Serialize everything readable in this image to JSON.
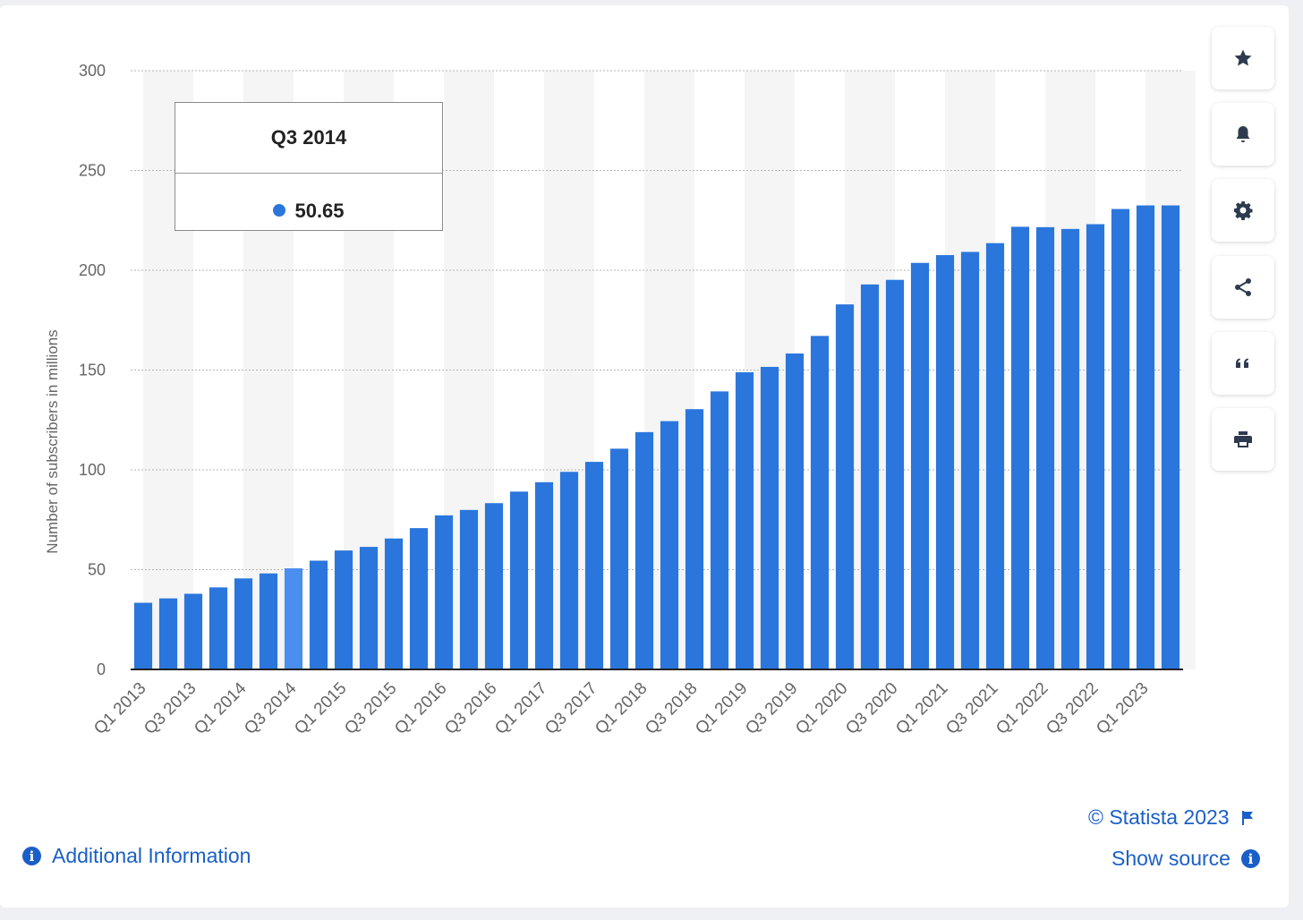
{
  "chart_data": {
    "type": "bar",
    "ylabel": "Number of subscribers in millions",
    "ylim": [
      0,
      300
    ],
    "yticks": [
      0,
      50,
      100,
      150,
      200,
      250,
      300
    ],
    "grid": true,
    "bar_color": "#2a76dd",
    "highlight_color": "#4a8ef0",
    "categories": [
      "Q1 2013",
      "Q2 2013",
      "Q3 2013",
      "Q4 2013",
      "Q1 2014",
      "Q2 2014",
      "Q3 2014",
      "Q4 2014",
      "Q1 2015",
      "Q2 2015",
      "Q3 2015",
      "Q4 2015",
      "Q1 2016",
      "Q2 2016",
      "Q3 2016",
      "Q4 2016",
      "Q1 2017",
      "Q2 2017",
      "Q3 2017",
      "Q4 2017",
      "Q1 2018",
      "Q2 2018",
      "Q3 2018",
      "Q4 2018",
      "Q1 2019",
      "Q2 2019",
      "Q3 2019",
      "Q4 2019",
      "Q1 2020",
      "Q2 2020",
      "Q3 2020",
      "Q4 2020",
      "Q1 2021",
      "Q2 2021",
      "Q3 2021",
      "Q4 2021",
      "Q1 2022",
      "Q2 2022",
      "Q3 2022",
      "Q4 2022",
      "Q1 2023",
      "Q2 2023"
    ],
    "xtick_labels": [
      "Q1 2013",
      "Q3 2013",
      "Q1 2014",
      "Q3 2014",
      "Q1 2015",
      "Q3 2015",
      "Q1 2016",
      "Q3 2016",
      "Q1 2017",
      "Q3 2017",
      "Q1 2018",
      "Q3 2018",
      "Q1 2019",
      "Q3 2019",
      "Q1 2020",
      "Q3 2020",
      "Q1 2021",
      "Q3 2021",
      "Q1 2022",
      "Q3 2022",
      "Q1 2023"
    ],
    "values": [
      33.4,
      35.6,
      37.9,
      41.1,
      45.6,
      48.1,
      50.65,
      54.5,
      59.6,
      61.4,
      65.6,
      70.8,
      77.2,
      79.9,
      83.3,
      89.1,
      93.8,
      99.0,
      104.0,
      110.6,
      118.9,
      124.4,
      130.4,
      139.3,
      148.9,
      151.6,
      158.3,
      167.1,
      182.9,
      192.9,
      195.2,
      203.7,
      207.6,
      209.2,
      213.6,
      221.8,
      221.6,
      220.7,
      223.1,
      230.7,
      232.5,
      232.5
    ],
    "highlight_index": 6
  },
  "tooltip": {
    "title": "Q3 2014",
    "value": "50.65"
  },
  "toolbar": {
    "buttons": [
      "star-icon",
      "bell-icon",
      "gear-icon",
      "share-icon",
      "quote-icon",
      "print-icon"
    ]
  },
  "footer": {
    "copyright": "© Statista 2023",
    "show_source": "Show source",
    "additional_info": "Additional Information"
  }
}
